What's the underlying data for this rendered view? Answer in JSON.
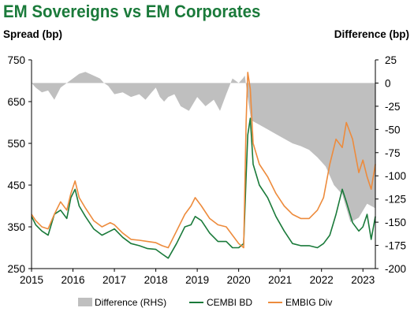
{
  "title": "EM Sovereigns vs EM Corporates",
  "chart_data": {
    "type": "line",
    "title": "EM Sovereigns vs EM Corporates",
    "ylabel": "Spread (bp)",
    "y2label": "Difference (bp)",
    "ylim": [
      250,
      750
    ],
    "y2lim": [
      -200,
      25
    ],
    "xlim": [
      2015.0,
      2023.3
    ],
    "xticks": [
      "2015",
      "2016",
      "2017",
      "2018",
      "2019",
      "2020",
      "2021",
      "2022",
      "2023"
    ],
    "yticks": [
      "250",
      "350",
      "450",
      "550",
      "650",
      "750"
    ],
    "y2ticks": [
      "-200",
      "-175",
      "-150",
      "-125",
      "-100",
      "-75",
      "-50",
      "-25",
      "0",
      "25"
    ],
    "legend_position": "bottom",
    "colors": {
      "difference": "#bfbfbf",
      "cembi": "#1a7a3a",
      "embig": "#ed8b3c"
    },
    "series": [
      {
        "name": "Difference (RHS)",
        "type": "area",
        "axis": "right",
        "x": [
          2015.0,
          2015.1,
          2015.25,
          2015.4,
          2015.55,
          2015.7,
          2015.85,
          2016.0,
          2016.15,
          2016.3,
          2016.5,
          2016.65,
          2016.75,
          2016.85,
          2017.0,
          2017.2,
          2017.4,
          2017.6,
          2017.75,
          2017.9,
          2018.0,
          2018.1,
          2018.2,
          2018.3,
          2018.45,
          2018.6,
          2018.8,
          2019.0,
          2019.2,
          2019.4,
          2019.55,
          2019.7,
          2019.85,
          2020.0,
          2020.1,
          2020.15,
          2020.2,
          2020.3,
          2020.5,
          2020.7,
          2020.9,
          2021.1,
          2021.3,
          2021.5,
          2021.7,
          2021.9,
          2022.1,
          2022.3,
          2022.5,
          2022.7,
          2022.9,
          2023.1,
          2023.3
        ],
        "values": [
          0,
          -5,
          -10,
          -8,
          -18,
          -5,
          0,
          5,
          10,
          12,
          8,
          5,
          0,
          -3,
          -12,
          -10,
          -15,
          -12,
          -18,
          -10,
          -5,
          -15,
          -20,
          -15,
          -12,
          -25,
          -30,
          -15,
          -25,
          -18,
          -30,
          -12,
          5,
          0,
          5,
          8,
          -10,
          -40,
          -45,
          -50,
          -55,
          -60,
          -65,
          -68,
          -72,
          -80,
          -90,
          -110,
          -120,
          -150,
          -145,
          -130,
          -135
        ]
      },
      {
        "name": "CEMBI BD",
        "type": "line",
        "axis": "left",
        "x": [
          2015.0,
          2015.1,
          2015.25,
          2015.4,
          2015.55,
          2015.7,
          2015.85,
          2015.95,
          2016.05,
          2016.15,
          2016.3,
          2016.5,
          2016.7,
          2016.9,
          2017.0,
          2017.2,
          2017.4,
          2017.6,
          2017.8,
          2018.0,
          2018.15,
          2018.3,
          2018.5,
          2018.7,
          2018.85,
          2018.95,
          2019.1,
          2019.3,
          2019.5,
          2019.7,
          2019.85,
          2020.0,
          2020.12,
          2020.18,
          2020.22,
          2020.28,
          2020.35,
          2020.5,
          2020.7,
          2020.9,
          2021.1,
          2021.3,
          2021.5,
          2021.7,
          2021.9,
          2022.05,
          2022.2,
          2022.35,
          2022.5,
          2022.6,
          2022.75,
          2022.9,
          2023.0,
          2023.1,
          2023.2,
          2023.3
        ],
        "values": [
          375,
          355,
          340,
          330,
          380,
          390,
          370,
          420,
          440,
          400,
          375,
          345,
          330,
          340,
          345,
          325,
          310,
          305,
          298,
          296,
          285,
          275,
          310,
          350,
          355,
          375,
          365,
          335,
          315,
          315,
          300,
          300,
          310,
          470,
          570,
          610,
          500,
          450,
          420,
          375,
          340,
          310,
          305,
          305,
          300,
          310,
          330,
          380,
          440,
          410,
          360,
          340,
          350,
          380,
          320,
          375
        ]
      },
      {
        "name": "EMBIG Div",
        "type": "line",
        "axis": "left",
        "x": [
          2015.0,
          2015.1,
          2015.25,
          2015.4,
          2015.55,
          2015.7,
          2015.85,
          2015.95,
          2016.05,
          2016.15,
          2016.3,
          2016.5,
          2016.7,
          2016.9,
          2017.0,
          2017.2,
          2017.4,
          2017.6,
          2017.8,
          2018.0,
          2018.15,
          2018.3,
          2018.5,
          2018.7,
          2018.85,
          2018.95,
          2019.1,
          2019.3,
          2019.5,
          2019.7,
          2019.85,
          2020.0,
          2020.12,
          2020.18,
          2020.22,
          2020.28,
          2020.35,
          2020.5,
          2020.7,
          2020.9,
          2021.1,
          2021.3,
          2021.5,
          2021.7,
          2021.9,
          2022.05,
          2022.2,
          2022.35,
          2022.5,
          2022.6,
          2022.75,
          2022.9,
          2023.0,
          2023.1,
          2023.2,
          2023.3
        ],
        "values": [
          380,
          365,
          350,
          345,
          380,
          410,
          390,
          430,
          460,
          420,
          395,
          365,
          350,
          360,
          355,
          335,
          320,
          318,
          315,
          312,
          305,
          300,
          340,
          380,
          400,
          420,
          400,
          370,
          355,
          350,
          330,
          310,
          300,
          600,
          720,
          680,
          550,
          500,
          470,
          430,
          400,
          380,
          370,
          370,
          390,
          420,
          500,
          560,
          540,
          600,
          560,
          480,
          510,
          470,
          440,
          500
        ]
      }
    ]
  }
}
